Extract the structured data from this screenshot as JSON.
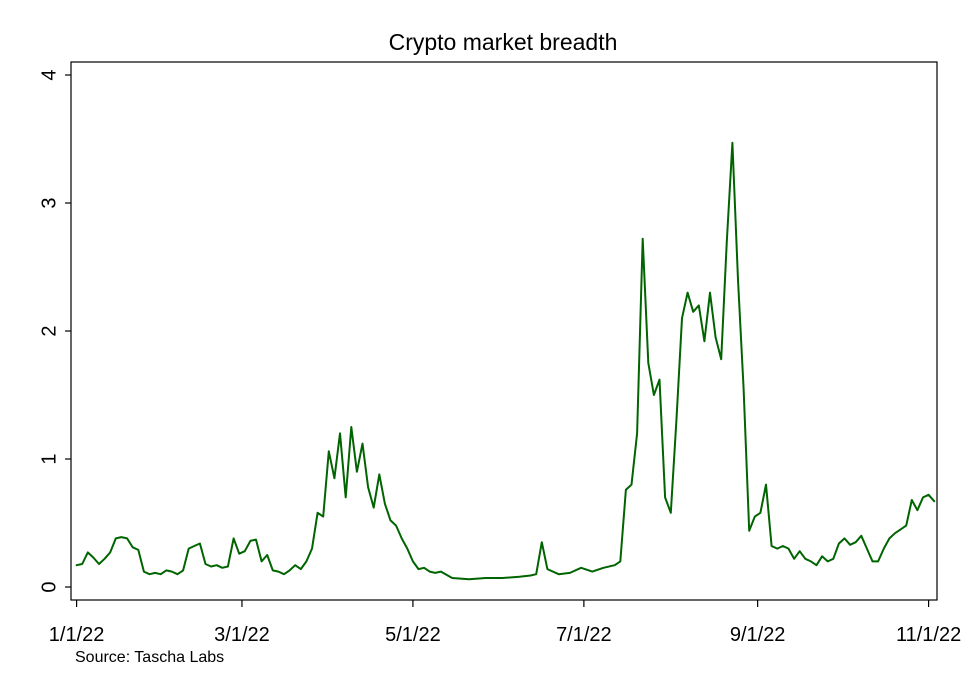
{
  "chart_data": {
    "type": "line",
    "title": "Crypto market breadth",
    "source": "Source: Tascha Labs",
    "xlabel": "",
    "ylabel": "",
    "ylim": [
      0,
      4
    ],
    "yticks": [
      0,
      1,
      2,
      3,
      4
    ],
    "xlim": [
      "2021-12-30",
      "2022-11-04"
    ],
    "xticks": [
      "2022-01-01",
      "2022-03-01",
      "2022-05-01",
      "2022-07-01",
      "2022-09-01",
      "2022-11-01"
    ],
    "xtick_labels": [
      "1/1/22",
      "3/1/22",
      "5/1/22",
      "7/1/22",
      "9/1/22",
      "11/1/22"
    ],
    "grid": false,
    "line_color": "#006400",
    "series": [
      {
        "x": [
          "2022-01-01",
          "2022-01-03",
          "2022-01-05",
          "2022-01-07",
          "2022-01-09",
          "2022-01-11",
          "2022-01-13",
          "2022-01-15",
          "2022-01-17",
          "2022-01-19",
          "2022-01-21",
          "2022-01-23",
          "2022-01-25",
          "2022-01-27",
          "2022-01-29",
          "2022-01-31",
          "2022-02-02",
          "2022-02-04",
          "2022-02-06",
          "2022-02-08",
          "2022-02-10",
          "2022-02-12",
          "2022-02-14",
          "2022-02-16",
          "2022-02-18",
          "2022-02-20",
          "2022-02-22",
          "2022-02-24",
          "2022-02-26",
          "2022-02-28",
          "2022-03-02",
          "2022-03-04",
          "2022-03-06",
          "2022-03-08",
          "2022-03-10",
          "2022-03-12",
          "2022-03-14",
          "2022-03-16",
          "2022-03-18",
          "2022-03-20",
          "2022-03-22",
          "2022-03-24",
          "2022-03-26",
          "2022-03-28",
          "2022-03-30",
          "2022-04-01",
          "2022-04-03",
          "2022-04-05",
          "2022-04-07",
          "2022-04-09",
          "2022-04-11",
          "2022-04-13",
          "2022-04-15",
          "2022-04-17",
          "2022-04-19",
          "2022-04-21",
          "2022-04-23",
          "2022-04-25",
          "2022-04-27",
          "2022-04-29",
          "2022-05-01",
          "2022-05-03",
          "2022-05-05",
          "2022-05-07",
          "2022-05-09",
          "2022-05-11",
          "2022-05-15",
          "2022-05-21",
          "2022-05-27",
          "2022-06-02",
          "2022-06-08",
          "2022-06-12",
          "2022-06-14",
          "2022-06-16",
          "2022-06-18",
          "2022-06-22",
          "2022-06-26",
          "2022-06-30",
          "2022-07-04",
          "2022-07-08",
          "2022-07-12",
          "2022-07-14",
          "2022-07-16",
          "2022-07-18",
          "2022-07-20",
          "2022-07-22",
          "2022-07-24",
          "2022-07-26",
          "2022-07-28",
          "2022-07-30",
          "2022-08-01",
          "2022-08-03",
          "2022-08-05",
          "2022-08-07",
          "2022-08-09",
          "2022-08-11",
          "2022-08-13",
          "2022-08-15",
          "2022-08-17",
          "2022-08-19",
          "2022-08-21",
          "2022-08-23",
          "2022-08-25",
          "2022-08-27",
          "2022-08-29",
          "2022-08-31",
          "2022-09-02",
          "2022-09-04",
          "2022-09-06",
          "2022-09-08",
          "2022-09-10",
          "2022-09-12",
          "2022-09-14",
          "2022-09-16",
          "2022-09-18",
          "2022-09-20",
          "2022-09-22",
          "2022-09-24",
          "2022-09-26",
          "2022-09-28",
          "2022-09-30",
          "2022-10-02",
          "2022-10-04",
          "2022-10-06",
          "2022-10-08",
          "2022-10-10",
          "2022-10-12",
          "2022-10-14",
          "2022-10-16",
          "2022-10-18",
          "2022-10-20",
          "2022-10-22",
          "2022-10-24",
          "2022-10-26",
          "2022-10-28",
          "2022-10-30",
          "2022-11-01",
          "2022-11-03"
        ],
        "values": [
          0.17,
          0.18,
          0.27,
          0.23,
          0.18,
          0.22,
          0.27,
          0.38,
          0.39,
          0.38,
          0.31,
          0.29,
          0.12,
          0.1,
          0.11,
          0.1,
          0.13,
          0.12,
          0.1,
          0.13,
          0.3,
          0.32,
          0.34,
          0.18,
          0.16,
          0.17,
          0.15,
          0.16,
          0.38,
          0.26,
          0.28,
          0.36,
          0.37,
          0.2,
          0.25,
          0.13,
          0.12,
          0.1,
          0.13,
          0.17,
          0.14,
          0.2,
          0.3,
          0.58,
          0.55,
          1.06,
          0.85,
          1.2,
          0.7,
          1.25,
          0.9,
          1.12,
          0.78,
          0.62,
          0.88,
          0.65,
          0.52,
          0.48,
          0.38,
          0.3,
          0.2,
          0.14,
          0.15,
          0.12,
          0.11,
          0.12,
          0.07,
          0.06,
          0.07,
          0.07,
          0.08,
          0.09,
          0.1,
          0.35,
          0.14,
          0.1,
          0.11,
          0.15,
          0.12,
          0.15,
          0.17,
          0.2,
          0.76,
          0.8,
          1.2,
          2.72,
          1.75,
          1.5,
          1.62,
          0.7,
          0.58,
          1.3,
          2.1,
          2.3,
          2.15,
          2.2,
          1.92,
          2.3,
          1.95,
          1.78,
          2.7,
          3.47,
          2.4,
          1.55,
          0.44,
          0.55,
          0.58,
          0.8,
          0.32,
          0.3,
          0.32,
          0.3,
          0.22,
          0.28,
          0.22,
          0.2,
          0.17,
          0.24,
          0.2,
          0.22,
          0.34,
          0.38,
          0.33,
          0.35,
          0.4,
          0.3,
          0.2,
          0.2,
          0.3,
          0.38,
          0.42,
          0.45,
          0.48,
          0.68,
          0.6,
          0.7,
          0.72,
          0.67
        ]
      }
    ]
  }
}
